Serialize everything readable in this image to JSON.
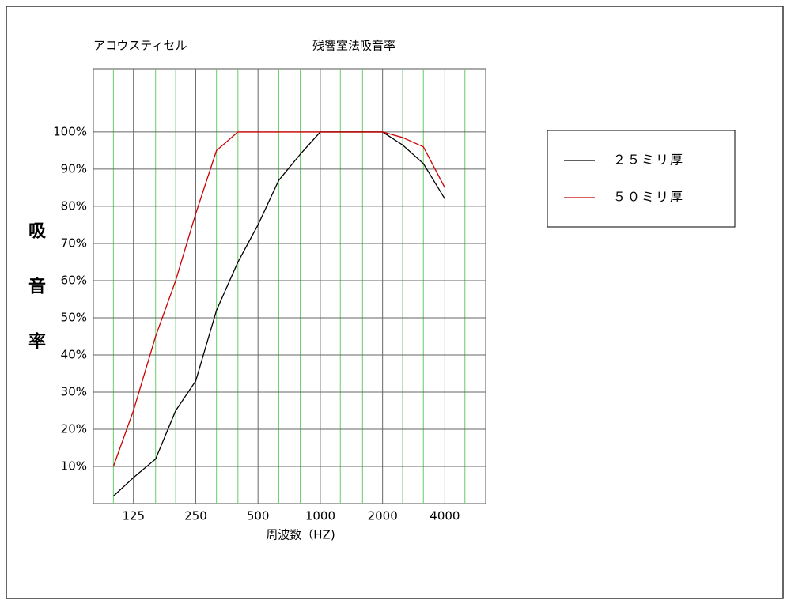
{
  "chart_data": {
    "type": "line",
    "title": "残響室法吸音率",
    "product": "アコウスティセル",
    "xlabel": "周波数（HZ)",
    "ylabel": "吸音率",
    "xscale": "log",
    "x": [
      100,
      125,
      160,
      200,
      250,
      315,
      400,
      500,
      630,
      800,
      1000,
      1250,
      1600,
      2000,
      2500,
      3150,
      4000
    ],
    "xlim": [
      80,
      6300
    ],
    "xticks": [
      125,
      250,
      500,
      1000,
      2000,
      4000
    ],
    "minor_xticks": [
      100,
      160,
      200,
      315,
      400,
      630,
      800,
      1250,
      1600,
      2500,
      3150,
      5000
    ],
    "minor_grid_color": "#66cc66",
    "ylim": [
      0,
      117
    ],
    "yticks": [
      {
        "value": 10,
        "label": "10%"
      },
      {
        "value": 20,
        "label": "20%"
      },
      {
        "value": 30,
        "label": "30%"
      },
      {
        "value": 40,
        "label": "40%"
      },
      {
        "value": 50,
        "label": "50%"
      },
      {
        "value": 60,
        "label": "60%"
      },
      {
        "value": 70,
        "label": "70%"
      },
      {
        "value": 80,
        "label": "80%"
      },
      {
        "value": 90,
        "label": "90%"
      },
      {
        "value": 100,
        "label": "100%"
      }
    ],
    "grid": true,
    "legend": "right",
    "series": [
      {
        "name": "２５ミリ厚",
        "color": "#000000",
        "values": [
          2,
          7,
          12,
          25,
          33,
          52,
          65,
          75,
          87,
          94,
          100,
          100,
          100,
          100,
          96.5,
          91.5,
          82
        ]
      },
      {
        "name": "５０ミリ厚",
        "color": "#cc0000",
        "values": [
          10,
          25,
          45,
          60,
          78,
          95,
          100,
          100,
          100,
          100,
          100,
          100,
          100,
          100,
          98.5,
          96,
          85
        ]
      }
    ]
  }
}
